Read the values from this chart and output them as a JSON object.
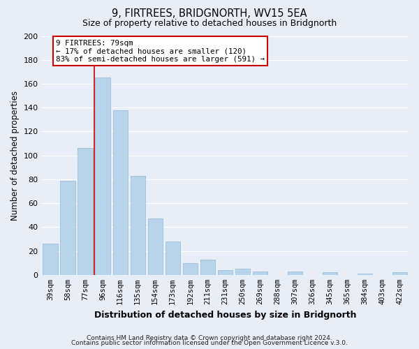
{
  "title": "9, FIRTREES, BRIDGNORTH, WV15 5EA",
  "subtitle": "Size of property relative to detached houses in Bridgnorth",
  "xlabel": "Distribution of detached houses by size in Bridgnorth",
  "ylabel": "Number of detached properties",
  "bar_labels": [
    "39sqm",
    "58sqm",
    "77sqm",
    "96sqm",
    "116sqm",
    "135sqm",
    "154sqm",
    "173sqm",
    "192sqm",
    "211sqm",
    "231sqm",
    "250sqm",
    "269sqm",
    "288sqm",
    "307sqm",
    "326sqm",
    "345sqm",
    "365sqm",
    "384sqm",
    "403sqm",
    "422sqm"
  ],
  "bar_values": [
    26,
    79,
    106,
    165,
    138,
    83,
    47,
    28,
    10,
    13,
    4,
    5,
    3,
    0,
    3,
    0,
    2,
    0,
    1,
    0,
    2
  ],
  "bar_color": "#b8d4ea",
  "bar_edge_color": "#a0bfda",
  "vline_index": 2.5,
  "annotation_title": "9 FIRTREES: 79sqm",
  "annotation_line1": "← 17% of detached houses are smaller (120)",
  "annotation_line2": "83% of semi-detached houses are larger (591) →",
  "annotation_box_facecolor": "#ffffff",
  "annotation_box_edgecolor": "#cc0000",
  "vline_color": "#cc0000",
  "ylim": [
    0,
    200
  ],
  "yticks": [
    0,
    20,
    40,
    60,
    80,
    100,
    120,
    140,
    160,
    180,
    200
  ],
  "footer_line1": "Contains HM Land Registry data © Crown copyright and database right 2024.",
  "footer_line2": "Contains public sector information licensed under the Open Government Licence v.3.0.",
  "background_color": "#e8eef8",
  "grid_color": "#ffffff"
}
